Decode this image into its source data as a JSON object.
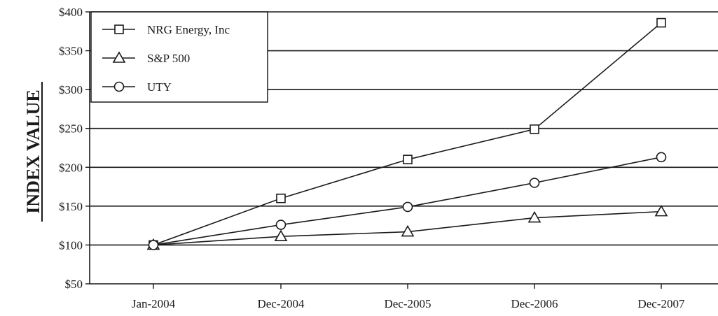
{
  "chart_data": {
    "type": "line",
    "title": "",
    "xlabel": "",
    "ylabel": "INDEX VALUE",
    "categories": [
      "Jan-2004",
      "Dec-2004",
      "Dec-2005",
      "Dec-2006",
      "Dec-2007"
    ],
    "y_tick_labels": [
      "$50",
      "$100",
      "$150",
      "$200",
      "$250",
      "$300",
      "$350",
      "$400"
    ],
    "y_ticks": [
      50,
      100,
      150,
      200,
      250,
      300,
      350,
      400
    ],
    "ylim": [
      50,
      400
    ],
    "grid": "horizontal",
    "legend_position": "top-left",
    "series": [
      {
        "name": "NRG Energy, Inc",
        "marker": "square",
        "values": [
          100,
          160,
          210,
          249,
          386
        ]
      },
      {
        "name": "S&P 500",
        "marker": "triangle",
        "values": [
          100,
          111,
          117,
          135,
          143
        ]
      },
      {
        "name": "UTY",
        "marker": "circle",
        "values": [
          100,
          126,
          149,
          180,
          213
        ]
      }
    ],
    "colors": {
      "line": "#1a1a1a",
      "marker_fill": "#ffffff",
      "background": "#ffffff"
    }
  }
}
